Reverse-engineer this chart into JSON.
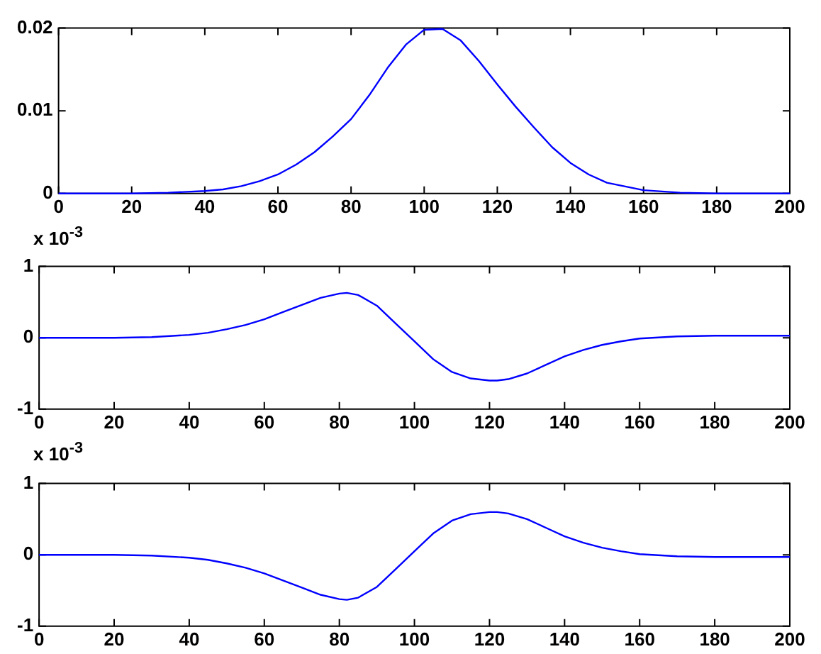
{
  "chart_data": [
    {
      "type": "line",
      "xlim": [
        0,
        200
      ],
      "xticks": [
        0,
        20,
        40,
        60,
        80,
        100,
        120,
        140,
        160,
        180,
        200
      ],
      "ylim": [
        0,
        0.02
      ],
      "yticks": [
        0,
        0.01,
        0.02
      ],
      "series": [
        {
          "color": "#0000ff",
          "x": [
            0,
            10,
            20,
            30,
            40,
            45,
            50,
            55,
            60,
            65,
            70,
            75,
            80,
            85,
            90,
            95,
            100,
            105,
            110,
            115,
            120,
            125,
            130,
            135,
            140,
            145,
            150,
            160,
            170,
            180,
            190,
            200
          ],
          "values": [
            0,
            0,
            0,
            0.0001,
            0.0003,
            0.0005,
            0.0009,
            0.0015,
            0.0023,
            0.0035,
            0.005,
            0.0069,
            0.009,
            0.0119,
            0.0152,
            0.018,
            0.0198,
            0.0199,
            0.0185,
            0.016,
            0.0132,
            0.0105,
            0.008,
            0.0056,
            0.0037,
            0.0023,
            0.0013,
            0.0004,
            0.0001,
            0,
            0,
            0
          ]
        }
      ]
    },
    {
      "type": "line",
      "xlim": [
        0,
        200
      ],
      "xticks": [
        0,
        20,
        40,
        60,
        80,
        100,
        120,
        140,
        160,
        180,
        200
      ],
      "ylim": [
        -1,
        1
      ],
      "yticks": [
        -1,
        0,
        1
      ],
      "annotations": [
        "x 10$^{-3}$"
      ],
      "series": [
        {
          "color": "#0000ff",
          "x": [
            0,
            20,
            30,
            40,
            45,
            50,
            55,
            60,
            65,
            70,
            75,
            80,
            82,
            85,
            90,
            95,
            100,
            105,
            110,
            115,
            120,
            122,
            125,
            130,
            135,
            140,
            145,
            150,
            155,
            160,
            170,
            180,
            190,
            200
          ],
          "values": [
            0,
            0,
            0.01,
            0.04,
            0.07,
            0.12,
            0.18,
            0.26,
            0.36,
            0.46,
            0.56,
            0.62,
            0.63,
            0.6,
            0.45,
            0.2,
            -0.05,
            -0.3,
            -0.48,
            -0.57,
            -0.6,
            -0.6,
            -0.58,
            -0.5,
            -0.38,
            -0.26,
            -0.17,
            -0.1,
            -0.05,
            -0.01,
            0.02,
            0.03,
            0.03,
            0.03
          ]
        }
      ]
    },
    {
      "type": "line",
      "xlim": [
        0,
        200
      ],
      "xticks": [
        0,
        20,
        40,
        60,
        80,
        100,
        120,
        140,
        160,
        180,
        200
      ],
      "ylim": [
        -1,
        1
      ],
      "yticks": [
        -1,
        0,
        1
      ],
      "annotations": [
        "x 10$^{-3}$"
      ],
      "series": [
        {
          "color": "#0000ff",
          "x": [
            0,
            20,
            30,
            40,
            45,
            50,
            55,
            60,
            65,
            70,
            75,
            80,
            82,
            85,
            90,
            95,
            100,
            105,
            110,
            115,
            120,
            122,
            125,
            130,
            135,
            140,
            145,
            150,
            155,
            160,
            170,
            180,
            190,
            200
          ],
          "values": [
            0,
            0,
            -0.01,
            -0.04,
            -0.07,
            -0.12,
            -0.18,
            -0.26,
            -0.36,
            -0.46,
            -0.56,
            -0.62,
            -0.63,
            -0.6,
            -0.45,
            -0.2,
            0.05,
            0.3,
            0.48,
            0.57,
            0.6,
            0.6,
            0.58,
            0.5,
            0.38,
            0.26,
            0.17,
            0.1,
            0.05,
            0.01,
            -0.02,
            -0.03,
            -0.03,
            -0.03
          ]
        }
      ]
    }
  ]
}
